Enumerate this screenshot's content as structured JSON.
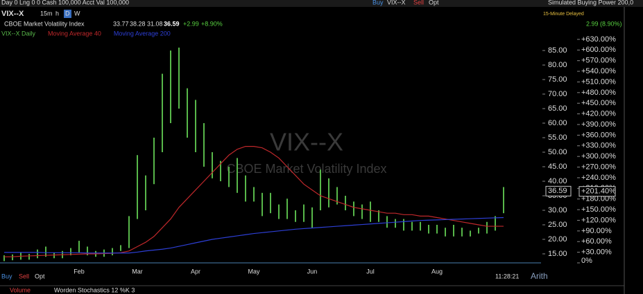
{
  "toolbar": {
    "account": "Day 0  Lng 0 0  Cash 100,000  Acct Val 100,000",
    "buy": "Buy",
    "symbol": "VIX--X",
    "sell": "Sell",
    "opt": "Opt",
    "buying_power": "Simulated Buying Power 200,0",
    "intervals": [
      "15m",
      "h",
      "D",
      "W"
    ],
    "delayed": "15-Minute Delayed"
  },
  "quote": {
    "name": "CBOE Market Volatility Index",
    "open": "33.77",
    "high": "38.28",
    "low": "31.08",
    "last": "36.59",
    "change": "+2.99",
    "change_pct": "+8.90%",
    "summary": "2.99 (8.90%)"
  },
  "footer": {
    "buy": "Buy",
    "sell": "Sell",
    "opt": "Opt",
    "time": "11:28:21",
    "scale": "Arith",
    "volume": "Volume",
    "stochastics": "Worden Stochastics 12 %K 3"
  },
  "chart_data": {
    "type": "range",
    "watermark": "VIX--X",
    "watermark_subtitle": "CBOE Market Volatility Index",
    "categories": [
      null,
      null,
      null,
      null,
      null,
      null,
      null,
      null,
      null,
      "Feb",
      null,
      null,
      null,
      null,
      null,
      null,
      "Mar",
      null,
      null,
      null,
      null,
      null,
      null,
      "Apr",
      null,
      null,
      null,
      null,
      null,
      null,
      "May",
      null,
      null,
      null,
      null,
      null,
      null,
      "Jun",
      null,
      null,
      null,
      null,
      null,
      null,
      "Jul",
      null,
      null,
      null,
      null,
      null,
      null,
      null,
      "Aug",
      null,
      null,
      null,
      null,
      null,
      null,
      null,
      null
    ],
    "series": [
      {
        "name": "VIX--X Daily",
        "color": "#58b84a",
        "high": [
          14.5,
          14.8,
          15.5,
          15,
          16.5,
          17.5,
          15.5,
          16,
          17,
          19.5,
          17.5,
          16,
          16.5,
          17,
          18,
          28,
          49,
          42,
          55,
          77,
          85,
          86,
          72,
          68,
          60,
          50,
          47,
          45,
          48,
          42,
          38,
          36,
          36,
          32,
          34,
          30,
          32,
          31,
          44,
          41,
          38,
          35,
          33,
          32,
          33,
          30,
          28,
          27,
          27,
          26,
          26,
          25,
          25,
          24,
          25,
          24,
          23,
          24,
          26,
          28,
          38
        ],
        "low": [
          12.5,
          12.8,
          13,
          13,
          13.5,
          14,
          13.5,
          13.5,
          14.5,
          15.5,
          14.5,
          14,
          14,
          14.5,
          16,
          17,
          27,
          30,
          39,
          50,
          60,
          65,
          55,
          50,
          45,
          41,
          40,
          38,
          36,
          33,
          33,
          28,
          29,
          27,
          27,
          26,
          26,
          24,
          30,
          31,
          32,
          30,
          28,
          27,
          26,
          26,
          24,
          24,
          23,
          23,
          23,
          22,
          22,
          21,
          21,
          21,
          21,
          22,
          22,
          23,
          29
        ]
      },
      {
        "name": "Moving Average 40",
        "color": "#c0282b",
        "values": [
          14,
          14,
          14.2,
          14.3,
          14.4,
          14.5,
          14.6,
          14.7,
          14.8,
          14.9,
          15,
          15,
          15.1,
          15.2,
          15.4,
          16,
          17.5,
          19,
          21,
          24,
          27,
          31,
          34,
          37,
          40,
          43,
          46,
          49,
          51,
          52,
          52,
          51.5,
          50,
          48,
          45,
          42,
          39,
          37,
          35,
          34,
          33,
          32,
          31,
          30.5,
          30,
          29.5,
          29,
          29,
          28.5,
          28.5,
          28,
          28,
          27.5,
          27,
          26.5,
          26,
          25.5,
          25,
          24.5,
          24.5,
          24.5
        ]
      },
      {
        "name": "Moving Average 200",
        "color": "#2d3fd6",
        "values": [
          15.5,
          15.5,
          15.5,
          15.5,
          15.5,
          15.4,
          15.4,
          15.4,
          15.4,
          15.4,
          15.3,
          15.3,
          15.3,
          15.3,
          15.3,
          15.3,
          15.6,
          16,
          16.3,
          16.6,
          17,
          17.6,
          18.2,
          18.8,
          19.4,
          20,
          20.4,
          20.8,
          21.2,
          21.6,
          22,
          22.3,
          22.6,
          22.9,
          23.2,
          23.5,
          23.7,
          23.9,
          24.1,
          24.3,
          24.5,
          24.7,
          24.9,
          25.1,
          25.3,
          25.5,
          25.7,
          25.9,
          26.1,
          26.3,
          26.5,
          26.6,
          26.7,
          26.8,
          26.9,
          27,
          27.1,
          27.2,
          27.3,
          27.4,
          27.5
        ]
      }
    ],
    "ylim": [
      11.9,
      88.1
    ],
    "yticks": [
      {
        "value": 15,
        "label": "15.00"
      },
      {
        "value": 20,
        "label": "20.00"
      },
      {
        "value": 25,
        "label": "25.00"
      },
      {
        "value": 30,
        "label": "30.00"
      },
      {
        "value": 35,
        "label": "35.00"
      },
      {
        "value": 40,
        "label": "40.00"
      },
      {
        "value": 45,
        "label": "45.00"
      },
      {
        "value": 50,
        "label": "50.00"
      },
      {
        "value": 55,
        "label": "55.00"
      },
      {
        "value": 60,
        "label": "60.00"
      },
      {
        "value": 65,
        "label": "65.00"
      },
      {
        "value": 70,
        "label": "70.00"
      },
      {
        "value": 75,
        "label": "75.00"
      },
      {
        "value": 80,
        "label": "80.00"
      },
      {
        "value": 85,
        "label": "85.00"
      }
    ],
    "y2lim": [
      0,
      624
    ],
    "y2ticks": [
      {
        "value": 0,
        "label": "0%"
      },
      {
        "value": 30,
        "label": "+30.00%"
      },
      {
        "value": 60,
        "label": "+60.00%"
      },
      {
        "value": 90,
        "label": "+90.00%"
      },
      {
        "value": 120,
        "label": "+120.00%"
      },
      {
        "value": 150,
        "label": "+150.00%"
      },
      {
        "value": 180,
        "label": "+180.00%"
      },
      {
        "value": 210,
        "label": "+210.00%"
      },
      {
        "value": 240,
        "label": "+240.00%"
      },
      {
        "value": 270,
        "label": "+270.00%"
      },
      {
        "value": 300,
        "label": "+300.00%"
      },
      {
        "value": 330,
        "label": "+330.00%"
      },
      {
        "value": 360,
        "label": "+360.00%"
      },
      {
        "value": 390,
        "label": "+390.00%"
      },
      {
        "value": 420,
        "label": "+420.00%"
      },
      {
        "value": 450,
        "label": "+450.00%"
      },
      {
        "value": 480,
        "label": "+480.00%"
      },
      {
        "value": 510,
        "label": "+510.00%"
      },
      {
        "value": 540,
        "label": "+540.00%"
      },
      {
        "value": 570,
        "label": "+570.00%"
      },
      {
        "value": 600,
        "label": "+600.00%"
      },
      {
        "value": 630,
        "label": "+630.00%"
      }
    ],
    "current": {
      "value": 36.59,
      "label": "36.59",
      "pct": 201.4,
      "pct_label": "+201.40%"
    }
  }
}
